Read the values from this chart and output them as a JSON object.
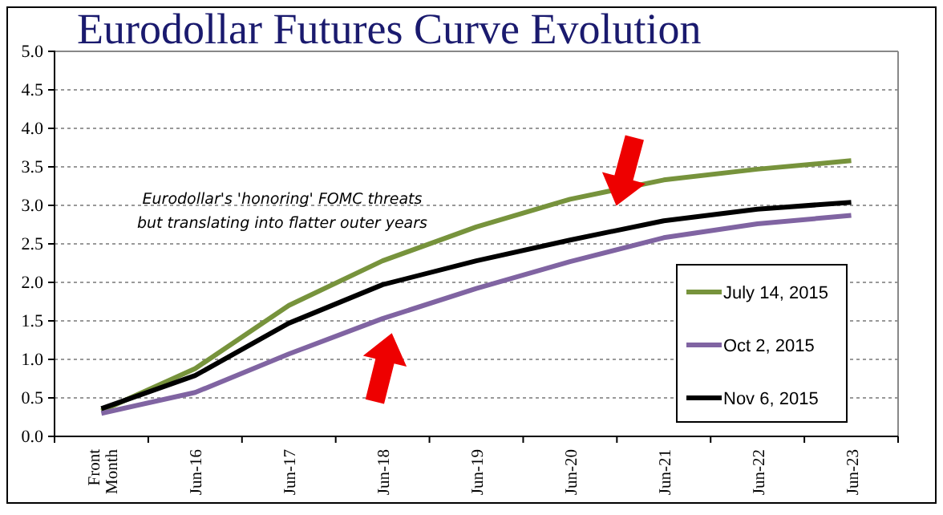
{
  "chart_data": {
    "type": "line",
    "title": "Eurodollar Futures Curve Evolution",
    "categories": [
      "Front Month",
      "Jun-16",
      "Jun-17",
      "Jun-18",
      "Jun-19",
      "Jun-20",
      "Jun-21",
      "Jun-22",
      "Jun-23"
    ],
    "series": [
      {
        "name": "July 14, 2015",
        "color": "#77933c",
        "values": [
          0.33,
          0.88,
          1.7,
          2.28,
          2.72,
          3.08,
          3.33,
          3.47,
          3.58
        ]
      },
      {
        "name": "Oct 2, 2015",
        "color": "#8064a2",
        "values": [
          0.3,
          0.57,
          1.07,
          1.53,
          1.92,
          2.27,
          2.58,
          2.76,
          2.87
        ]
      },
      {
        "name": "Nov 6, 2015",
        "color": "#000000",
        "values": [
          0.36,
          0.79,
          1.47,
          1.97,
          2.28,
          2.55,
          2.8,
          2.95,
          3.04
        ]
      }
    ],
    "ylim": [
      0,
      5
    ],
    "yticks": [
      {
        "value": 0,
        "label": "0.0"
      },
      {
        "value": 0.5,
        "label": "0.5"
      },
      {
        "value": 1,
        "label": "1.0"
      },
      {
        "value": 1.5,
        "label": "1.5"
      },
      {
        "value": 2,
        "label": "2.0"
      },
      {
        "value": 2.5,
        "label": "2.5"
      },
      {
        "value": 3,
        "label": "3.0"
      },
      {
        "value": 3.5,
        "label": "3.5"
      },
      {
        "value": 4,
        "label": "4.0"
      },
      {
        "value": 4.5,
        "label": "4.5"
      },
      {
        "value": 5,
        "label": "5.0"
      }
    ],
    "grid": "y",
    "legend": "bottom right",
    "marker": "none",
    "line_style": "solid",
    "annotations": [
      "Eurodollar's 'honoring' FOMC threats but translating into flatter outer years"
    ]
  }
}
